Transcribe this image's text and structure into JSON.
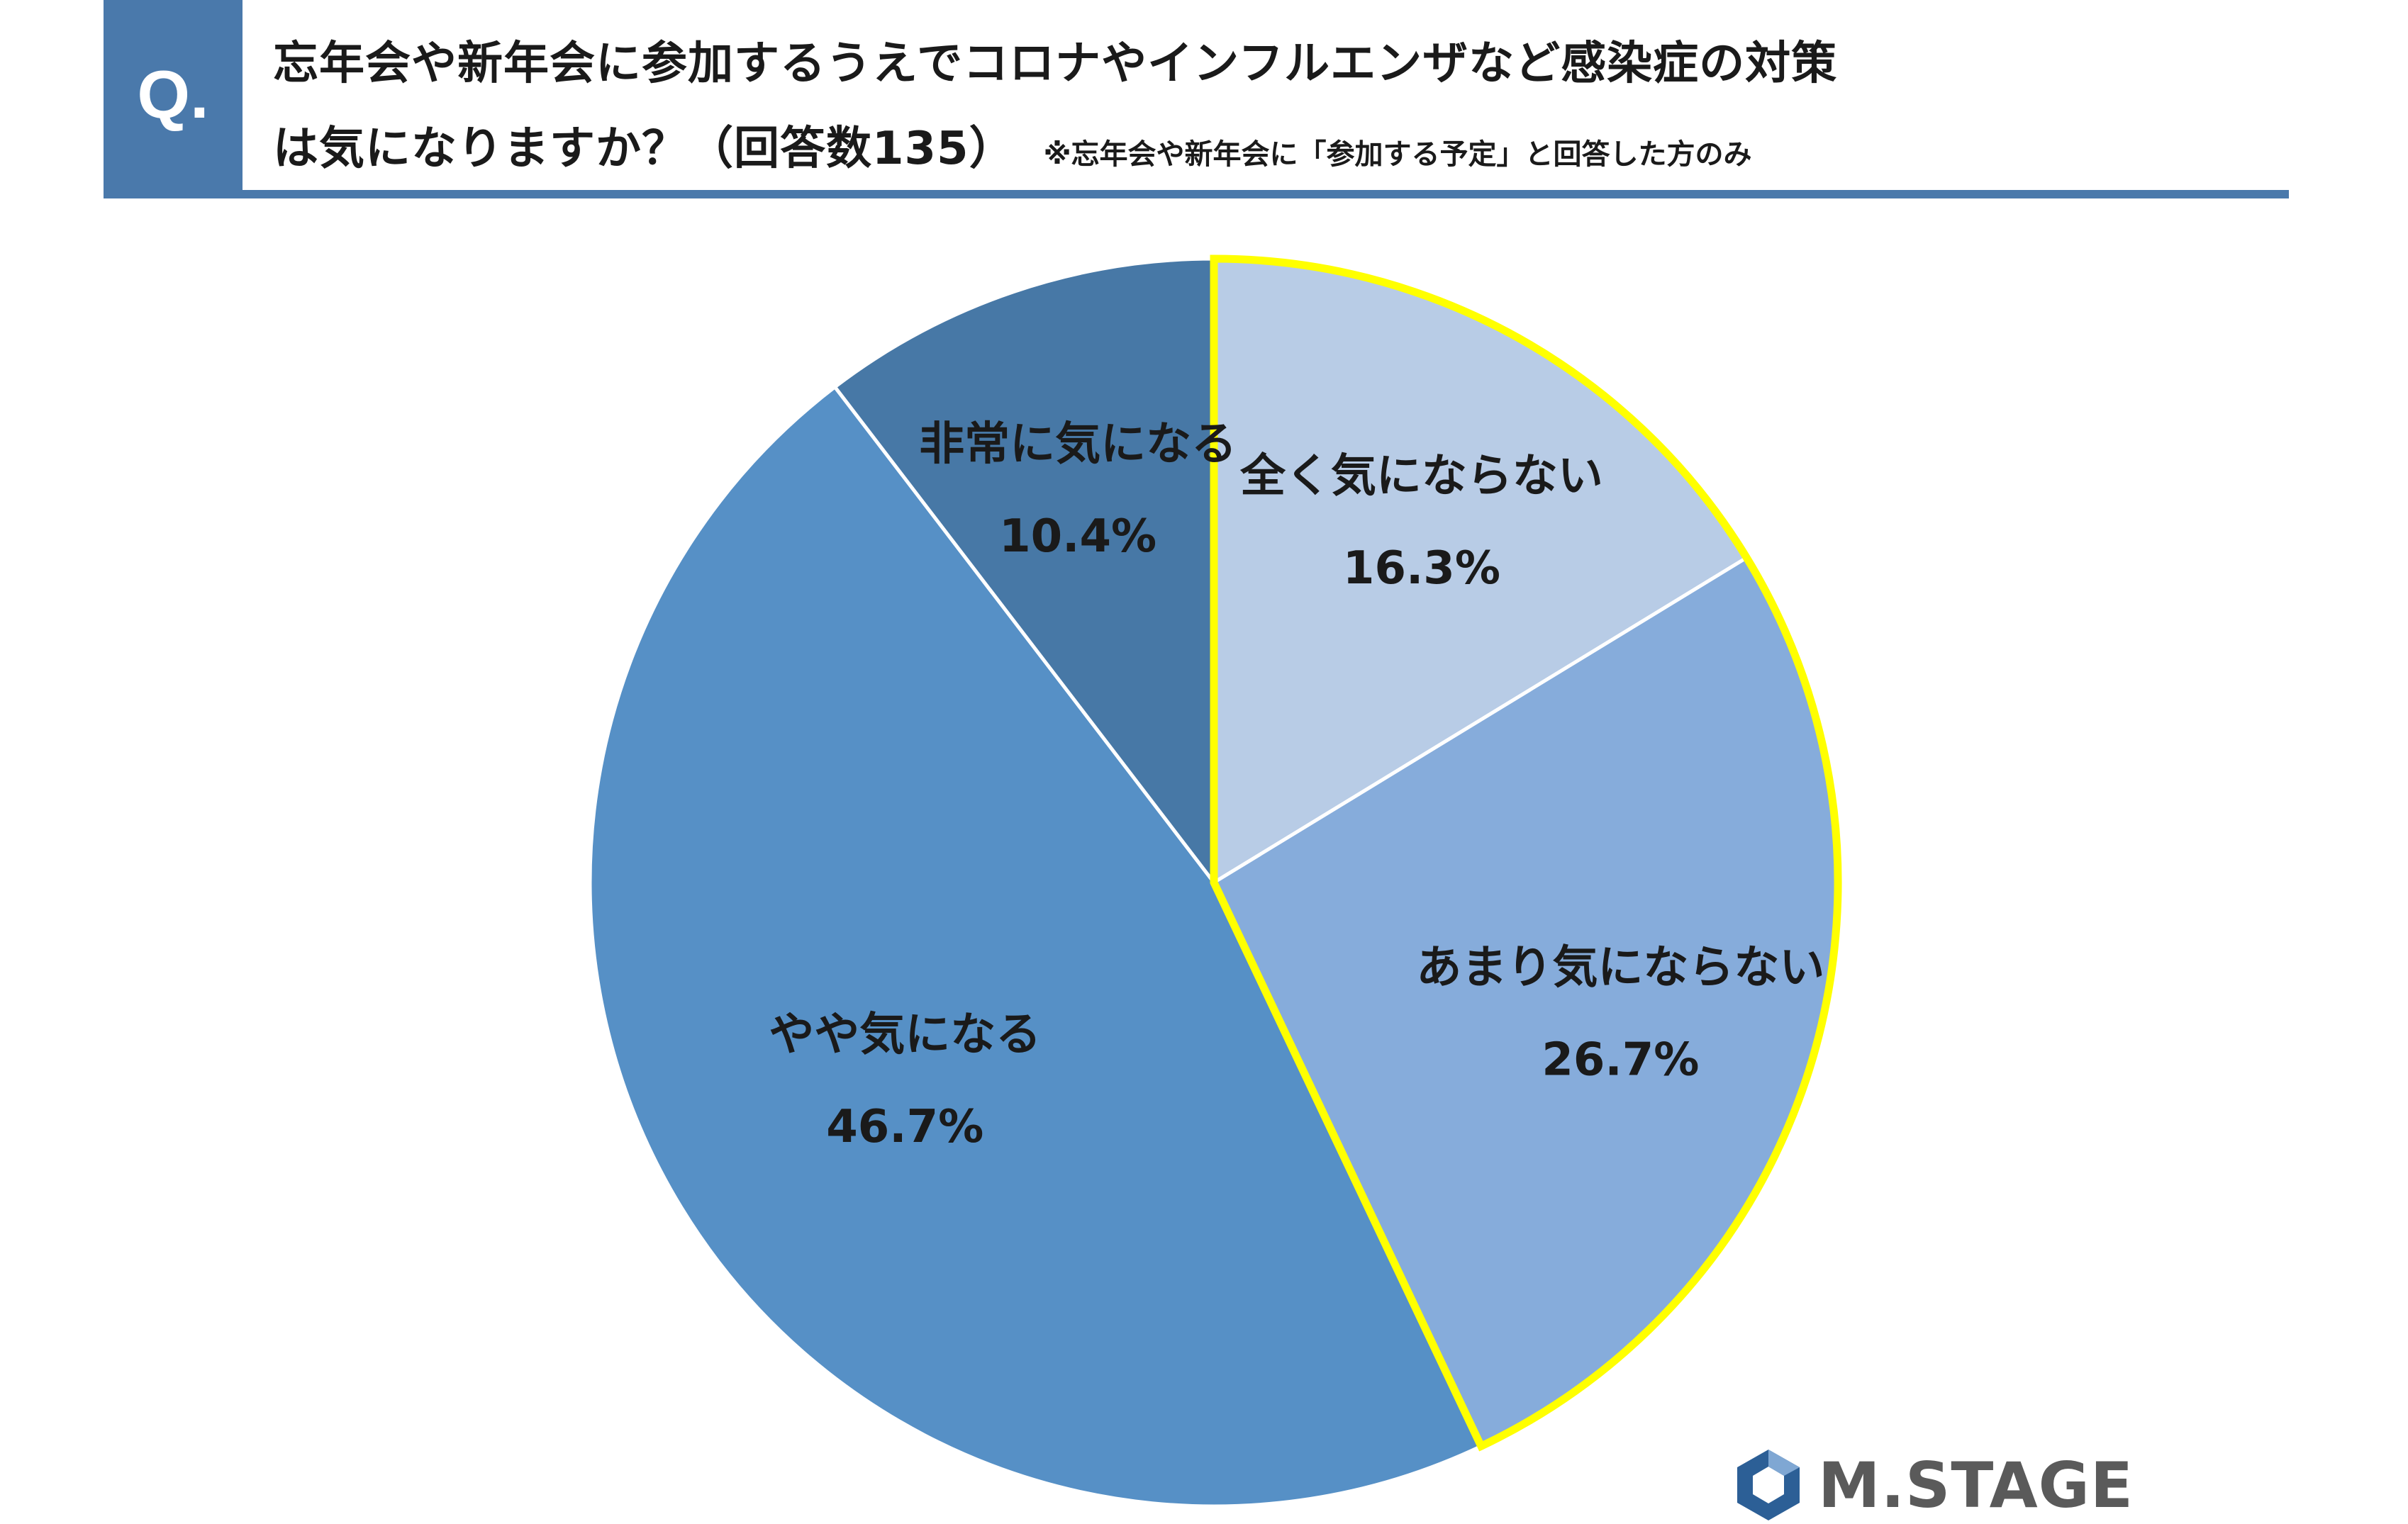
{
  "header": {
    "badge": "Q.",
    "line1": "忘年会や新年会に参加するうえでコロナやインフルエンザなど感染症の対策",
    "line2": "は気になりますか？（回答数135）",
    "note": "※忘年会や新年会に「参加する予定」と回答した方のみ"
  },
  "colors": {
    "accent": "#4a79ab",
    "highlight": "#ffff00"
  },
  "logo": {
    "text": "M.STAGE"
  },
  "chart_data": {
    "type": "pie",
    "start": "12 o'clock",
    "direction": "clockwise",
    "slices": [
      {
        "label": "全く気にならない",
        "value": 16.3,
        "value_label": "16.3%",
        "color": "#b8cce6",
        "highlighted": true
      },
      {
        "label": "あまり気にならない",
        "value": 26.7,
        "value_label": "26.7%",
        "color": "#86acdb",
        "highlighted": true
      },
      {
        "label": "やや気になる",
        "value": 46.7,
        "value_label": "46.7%",
        "color": "#5690c6",
        "highlighted": false
      },
      {
        "label": "非常に気になる",
        "value": 10.4,
        "value_label": "10.4%",
        "color": "#4778a6",
        "highlighted": false
      }
    ]
  }
}
